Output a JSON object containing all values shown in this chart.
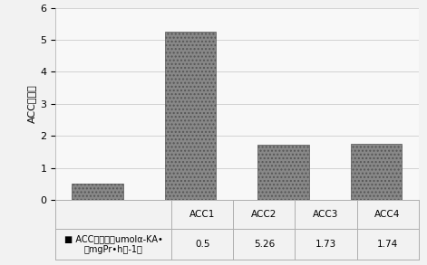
{
  "categories": [
    "ACC1",
    "ACC2",
    "ACC3",
    "ACC4"
  ],
  "values": [
    0.5,
    5.26,
    1.73,
    1.74
  ],
  "bar_color": "#888888",
  "bar_hatch": "....",
  "ylabel": "ACC脲氨酶",
  "ylim": [
    0,
    6
  ],
  "yticks": [
    0,
    1,
    2,
    3,
    4,
    5,
    6
  ],
  "legend_label_line1": "■ ACC脲氨酶（umolα-KA•",
  "legend_label_line2": "（mgPr•h）-1）",
  "table_values": [
    "0.5",
    "5.26",
    "1.73",
    "1.74"
  ],
  "background_color": "#f2f2f2",
  "plot_background": "#f8f8f8",
  "grid_color": "#cccccc",
  "bar_edge_color": "#555555",
  "axis_fontsize": 8,
  "table_fontsize": 7.5,
  "ylabel_fontsize": 8
}
